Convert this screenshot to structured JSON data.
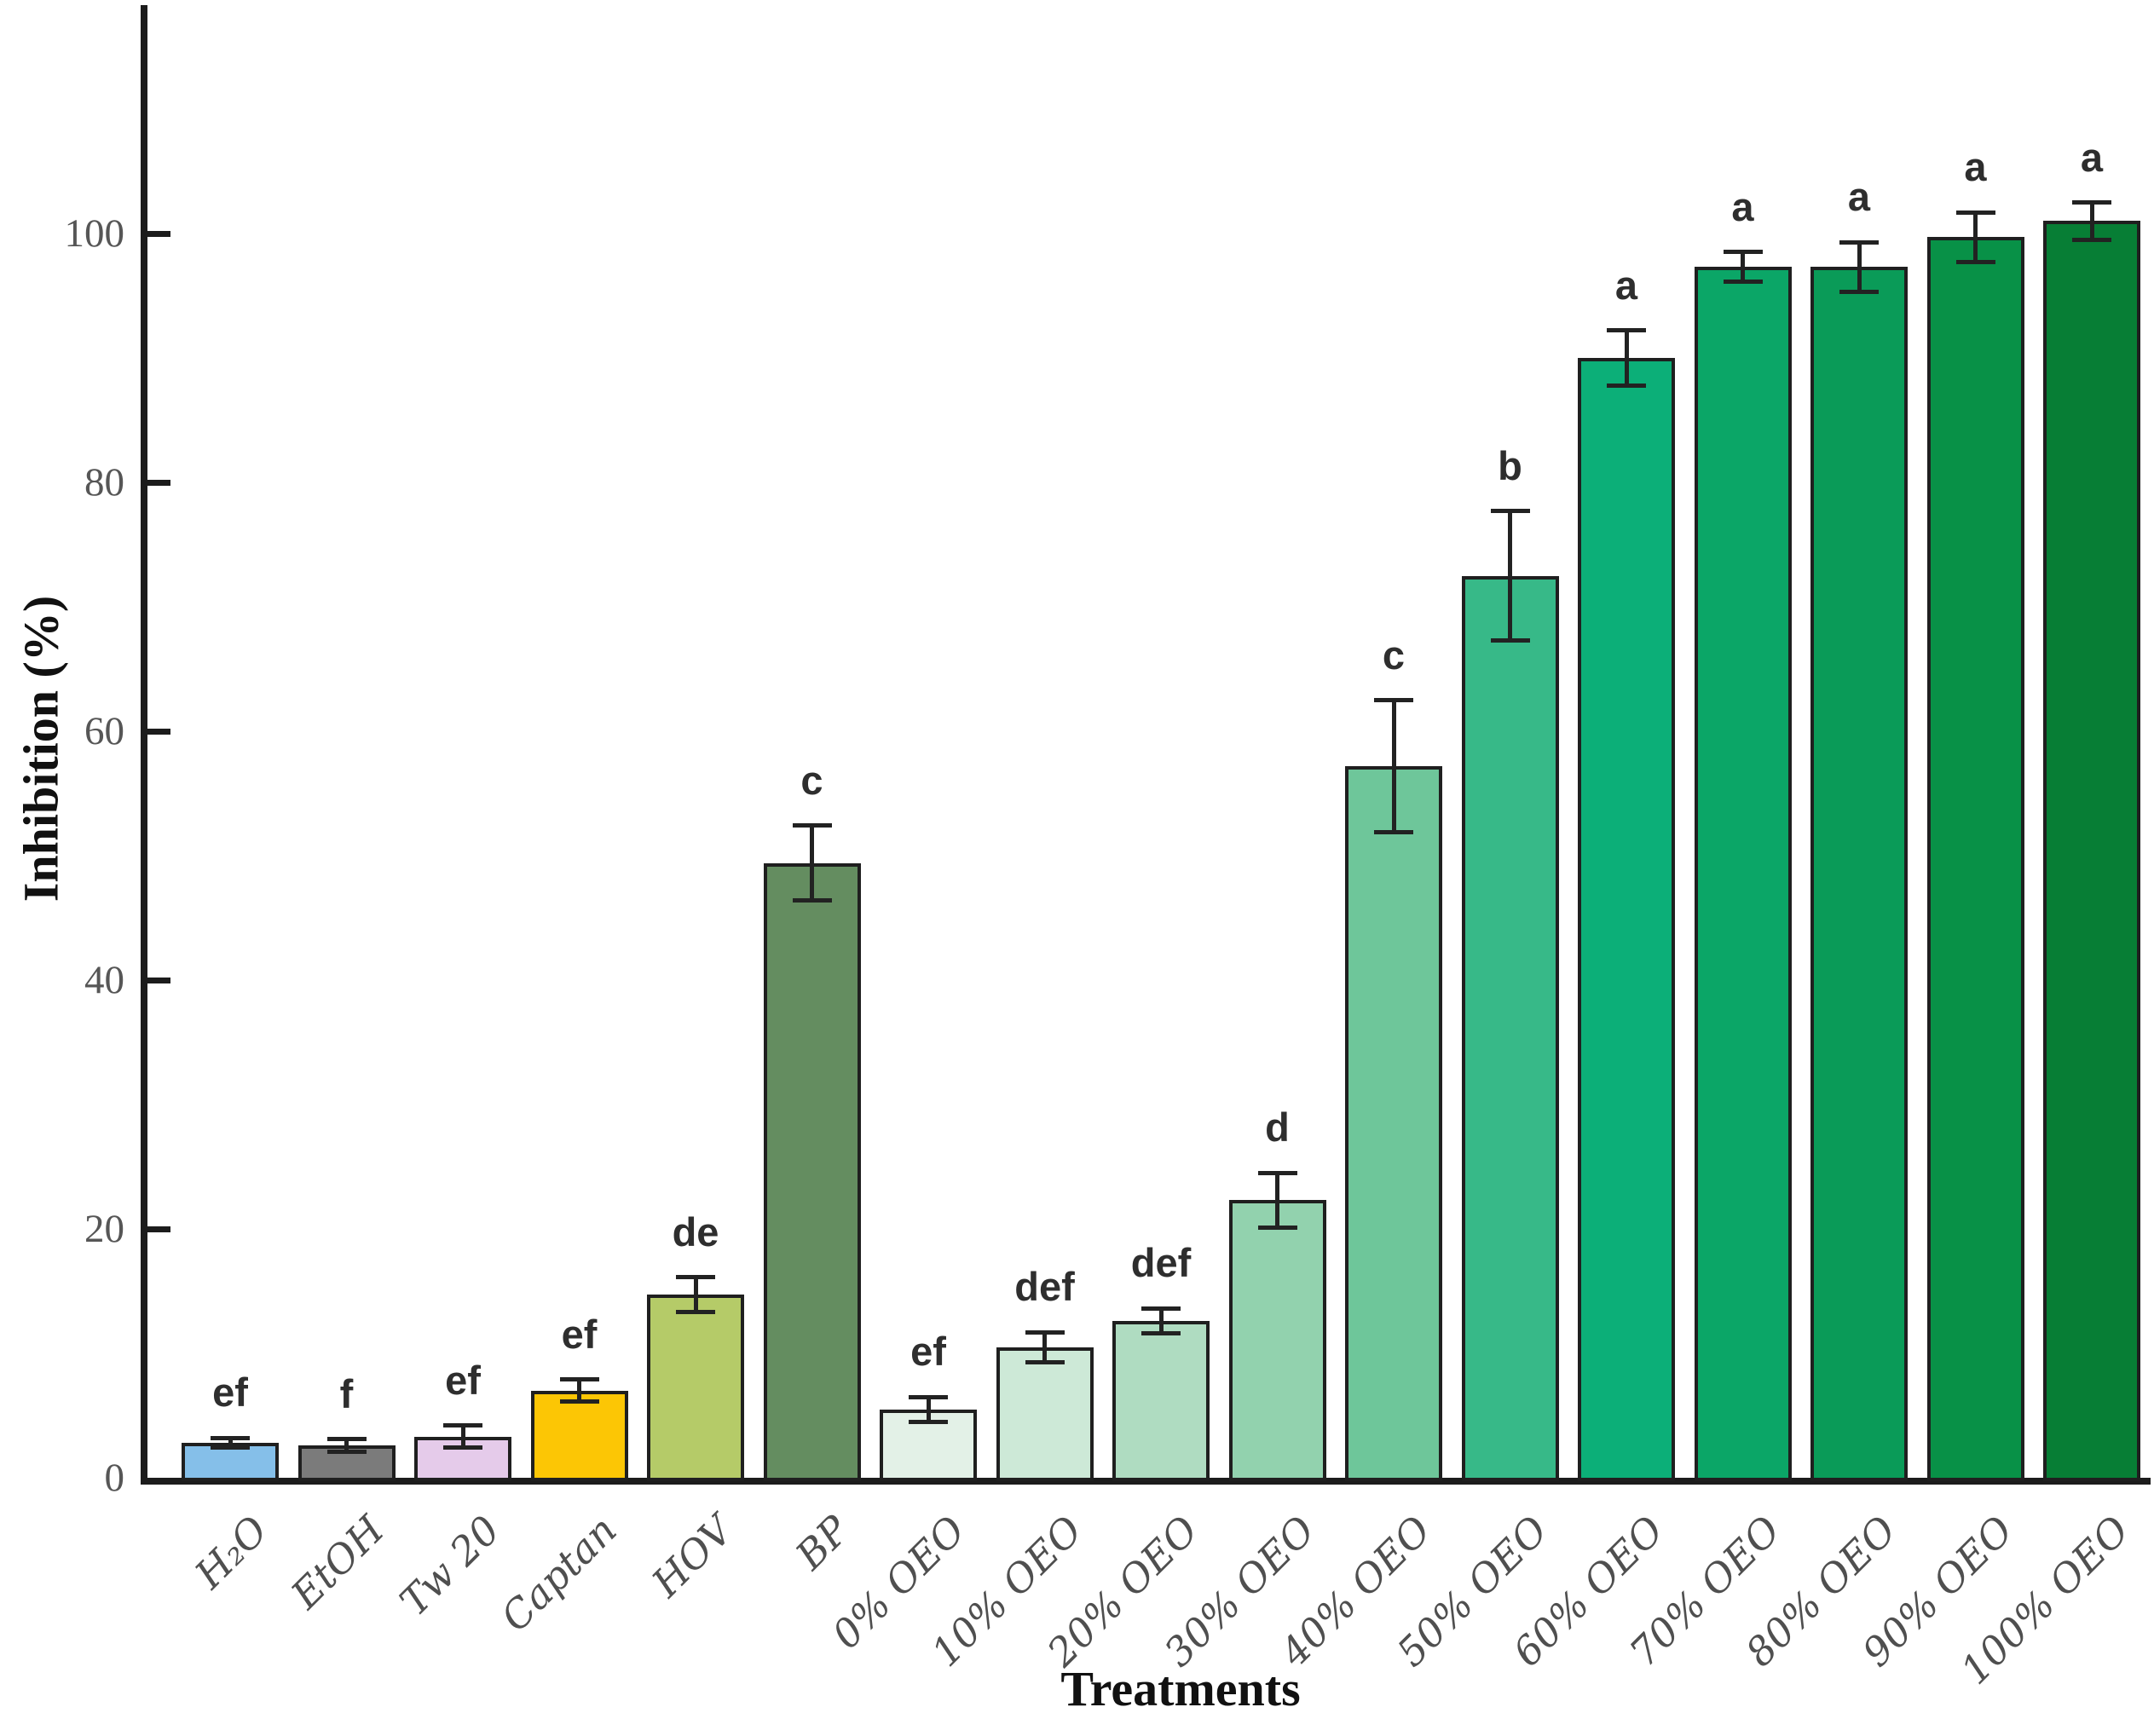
{
  "figure": {
    "kind": "static-bar-chart-figure"
  },
  "chart_data": {
    "type": "bar",
    "title": "",
    "xlabel": "Treatments",
    "ylabel": "Inhibition (%)",
    "ylim": [
      0,
      118
    ],
    "yticks": [
      0,
      20,
      40,
      60,
      80,
      100
    ],
    "grid": false,
    "legend_position": "none",
    "categories": [
      "H₂O",
      "EtOH",
      "Tw 20",
      "Captan",
      "HOV",
      "BP",
      "0% OEO",
      "10% OEO",
      "20% OEO",
      "30% OEO",
      "40% OEO",
      "50% OEO",
      "60% OEO",
      "70% OEO",
      "80% OEO",
      "90% OEO",
      "100% OEO"
    ],
    "values": [
      2.8,
      2.6,
      3.3,
      7.0,
      14.7,
      49.4,
      5.5,
      10.5,
      12.6,
      22.3,
      57.2,
      72.5,
      90.0,
      97.3,
      97.3,
      99.7,
      101.0
    ],
    "errors": [
      0.4,
      0.5,
      0.9,
      0.9,
      1.4,
      3.0,
      1.0,
      1.2,
      1.0,
      2.2,
      5.3,
      5.2,
      2.2,
      1.2,
      2.0,
      2.0,
      1.5
    ],
    "sig_letters": [
      "ef",
      "f",
      "ef",
      "ef",
      "de",
      "c",
      "ef",
      "def",
      "def",
      "d",
      "c",
      "b",
      "a",
      "a",
      "a",
      "a",
      "a"
    ],
    "bar_colors": [
      "#85bfe9",
      "#7b7b7b",
      "#e5cbea",
      "#fcc605",
      "#b5cb68",
      "#648d60",
      "#e3f1e7",
      "#cde9d7",
      "#afdcc1",
      "#92d2ae",
      "#6ec69a",
      "#37b988",
      "#0caf78",
      "#0ba667",
      "#0a9b58",
      "#089147",
      "#077e35"
    ],
    "bar_edge_color": "#1f1f1f",
    "error_bar_color": "#222222",
    "axis_color": "#1c1c1c",
    "tick_label_color": "#565656"
  }
}
